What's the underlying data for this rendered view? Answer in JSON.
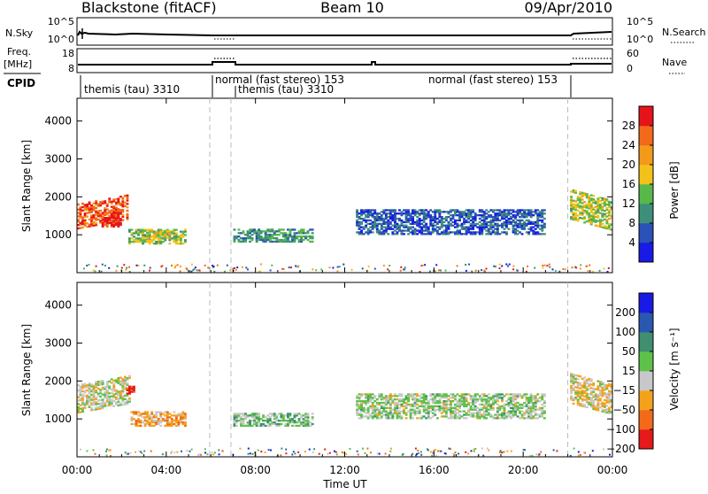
{
  "header": {
    "station": "Blackstone (fitACF)",
    "beam": "Beam 10",
    "date": "09/Apr/2010"
  },
  "panels": {
    "nsky": {
      "left_label": "N.Sky",
      "right_label": "N.Search",
      "left_ticks": [
        "10^5",
        "10^0"
      ],
      "right_ticks": [
        "10^5",
        "10^0"
      ]
    },
    "freq": {
      "left_label_1": "Freq.",
      "left_label_2": "[MHz]",
      "right_label": "Nave",
      "left_ticks": [
        "18",
        "8"
      ],
      "right_ticks": [
        "60",
        "0"
      ]
    },
    "cpid": {
      "label": "CPID",
      "segments": [
        "themis (tau) 3310",
        "normal (fast stereo) 153",
        "themis (tau) 3310",
        "normal (fast stereo) 153"
      ]
    }
  },
  "axes": {
    "ylabel": "Slant Range [km]",
    "xlabel": "Time UT",
    "yticks": [
      "1000",
      "2000",
      "3000",
      "4000"
    ],
    "xticks": [
      "00:00",
      "04:00",
      "08:00",
      "12:00",
      "16:00",
      "20:00",
      "00:00"
    ]
  },
  "colorbars": {
    "power": {
      "label": "Power [dB]",
      "ticks": [
        "4",
        "8",
        "12",
        "16",
        "20",
        "24",
        "28"
      ],
      "colors": [
        "#1a1ae6",
        "#2a52b8",
        "#3e8f7a",
        "#58b84a",
        "#f2c21a",
        "#f29a1a",
        "#f26a1a",
        "#e6141a"
      ]
    },
    "velocity": {
      "label": "Velocity [m s⁻¹]",
      "ticks": [
        "200",
        "100",
        "50",
        "15",
        "−15",
        "−50",
        "−100",
        "−200"
      ],
      "colors": [
        "#1a1ae6",
        "#2a58b0",
        "#3f8f70",
        "#5ec14a",
        "#c8c8c8",
        "#f4a21c",
        "#f26a1a",
        "#e61a1a"
      ]
    }
  },
  "chart_data": [
    {
      "type": "heatmap",
      "title": "Power",
      "xlabel": "Time UT",
      "ylabel": "Slant Range [km]",
      "xlim": [
        0,
        24
      ],
      "ylim": [
        0,
        4600
      ],
      "colorbar_label": "Power [dB]",
      "colorbar_ticks": [
        4,
        8,
        12,
        16,
        20,
        24,
        28
      ],
      "regions": [
        {
          "t": [
            0.0,
            2.3
          ],
          "r": [
            1150,
            1800
          ],
          "level": 0.85,
          "drift": 250
        },
        {
          "t": [
            1.1,
            2.0
          ],
          "r": [
            1200,
            1650
          ],
          "level": 0.95,
          "drift": 0
        },
        {
          "t": [
            2.3,
            4.8
          ],
          "r": [
            750,
            1150
          ],
          "level": 0.45,
          "drift": 0
        },
        {
          "t": [
            3.0,
            4.2
          ],
          "r": [
            900,
            1100
          ],
          "level": 0.55,
          "drift": 0
        },
        {
          "t": [
            7.0,
            10.5
          ],
          "r": [
            800,
            1150
          ],
          "level": 0.35,
          "drift": 0
        },
        {
          "t": [
            12.5,
            21.0
          ],
          "r": [
            1000,
            1650
          ],
          "level": 0.2,
          "drift": 0
        },
        {
          "t": [
            22.1,
            24.0
          ],
          "r": [
            1400,
            2200
          ],
          "level": 0.5,
          "drift": -300
        }
      ]
    },
    {
      "type": "heatmap",
      "title": "Velocity",
      "xlabel": "Time UT",
      "ylabel": "Slant Range [km]",
      "xlim": [
        0,
        24
      ],
      "ylim": [
        0,
        4600
      ],
      "colorbar_label": "Velocity [m s⁻¹]",
      "colorbar_ticks": [
        200,
        100,
        50,
        15,
        -15,
        -50,
        -100,
        -200
      ],
      "regions": [
        {
          "t": [
            0.0,
            2.4
          ],
          "r": [
            1150,
            1900
          ],
          "level": 0.55,
          "drift": 250
        },
        {
          "t": [
            2.2,
            2.6
          ],
          "r": [
            1650,
            1850
          ],
          "level": 0.95,
          "drift": 0
        },
        {
          "t": [
            2.4,
            4.8
          ],
          "r": [
            800,
            1200
          ],
          "level": 0.7,
          "drift": 0
        },
        {
          "t": [
            7.0,
            10.5
          ],
          "r": [
            800,
            1150
          ],
          "level": 0.45,
          "drift": 0
        },
        {
          "t": [
            12.5,
            21.0
          ],
          "r": [
            1000,
            1650
          ],
          "level": 0.5,
          "drift": 0
        },
        {
          "t": [
            22.1,
            24.0
          ],
          "r": [
            1400,
            2200
          ],
          "level": 0.6,
          "drift": -300
        }
      ]
    }
  ],
  "mode_changes_hours": [
    5.95,
    6.9,
    22.0
  ]
}
